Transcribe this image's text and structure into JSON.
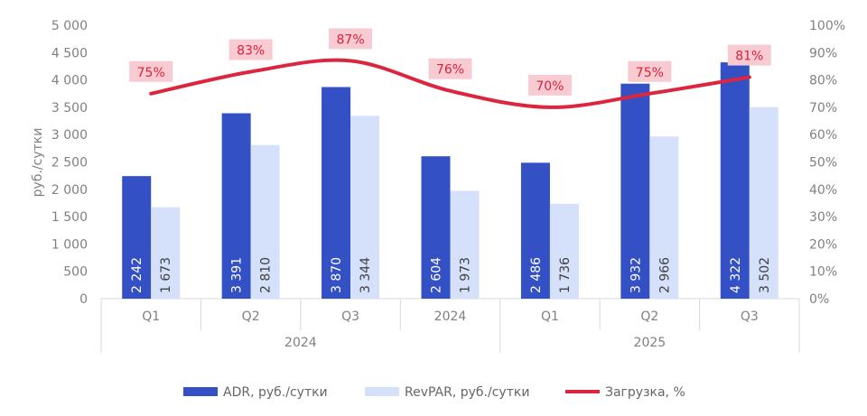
{
  "chart_data": {
    "type": "bar",
    "categories": [
      "Q1",
      "Q2",
      "Q3",
      "2024",
      "Q1",
      "Q2",
      "Q3"
    ],
    "groups": [
      {
        "label": "2024",
        "span": [
          0,
          3
        ]
      },
      {
        "label": "2025",
        "span": [
          4,
          6
        ]
      }
    ],
    "series": [
      {
        "name": "ADR, руб./сутки",
        "type": "bar",
        "axis": "left",
        "color": "#3350c4",
        "values": [
          2242,
          3391,
          3870,
          2604,
          2486,
          3932,
          4322
        ],
        "labels": [
          "2 242",
          "3 391",
          "3 870",
          "2 604",
          "2 486",
          "3 932",
          "4 322"
        ]
      },
      {
        "name": "RevPAR, руб./сутки",
        "type": "bar",
        "axis": "left",
        "color": "#d5e1fb",
        "values": [
          1673,
          2810,
          3344,
          1973,
          1736,
          2966,
          3502
        ],
        "labels": [
          "1 673",
          "2 810",
          "3 344",
          "1 973",
          "1 736",
          "2 966",
          "3 502"
        ]
      },
      {
        "name": "Загрузка, %",
        "type": "line",
        "axis": "right",
        "color": "#dc2640",
        "values": [
          75,
          83,
          87,
          76,
          70,
          75,
          81
        ],
        "labels": [
          "75%",
          "83%",
          "87%",
          "76%",
          "70%",
          "75%",
          "81%"
        ]
      }
    ],
    "ylabel": "руб./сутки",
    "ylim": [
      0,
      5000
    ],
    "yticks": [
      "0",
      "500",
      "1 000",
      "1 500",
      "2 000",
      "2 500",
      "3 000",
      "3 500",
      "4 000",
      "4 500",
      "5 000"
    ],
    "y2lim": [
      0,
      100
    ],
    "y2ticks": [
      "0%",
      "10%",
      "20%",
      "30%",
      "40%",
      "50%",
      "60%",
      "70%",
      "80%",
      "90%",
      "100%"
    ],
    "grid": false,
    "legend": "bottom"
  }
}
